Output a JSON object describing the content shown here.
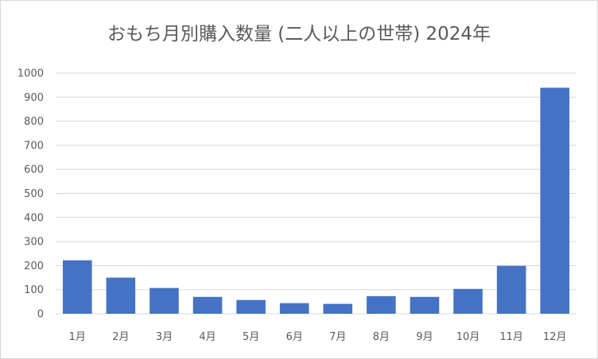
{
  "chart_data": {
    "type": "bar",
    "title": "おもち月別購入数量 (二人以上の世帯) 2024年",
    "xlabel": "",
    "ylabel": "",
    "categories": [
      "1月",
      "2月",
      "3月",
      "4月",
      "5月",
      "6月",
      "7月",
      "8月",
      "9月",
      "10月",
      "11月",
      "12月"
    ],
    "values": [
      222,
      150,
      107,
      70,
      57,
      44,
      41,
      73,
      70,
      103,
      199,
      939
    ],
    "ylim": [
      0,
      1000
    ],
    "yticks": [
      0,
      100,
      200,
      300,
      400,
      500,
      600,
      700,
      800,
      900,
      1000
    ],
    "grid": true,
    "legend": "none",
    "bar_color": "#4472c4",
    "grid_color": "#d9d9d9",
    "text_color": "#595959"
  }
}
